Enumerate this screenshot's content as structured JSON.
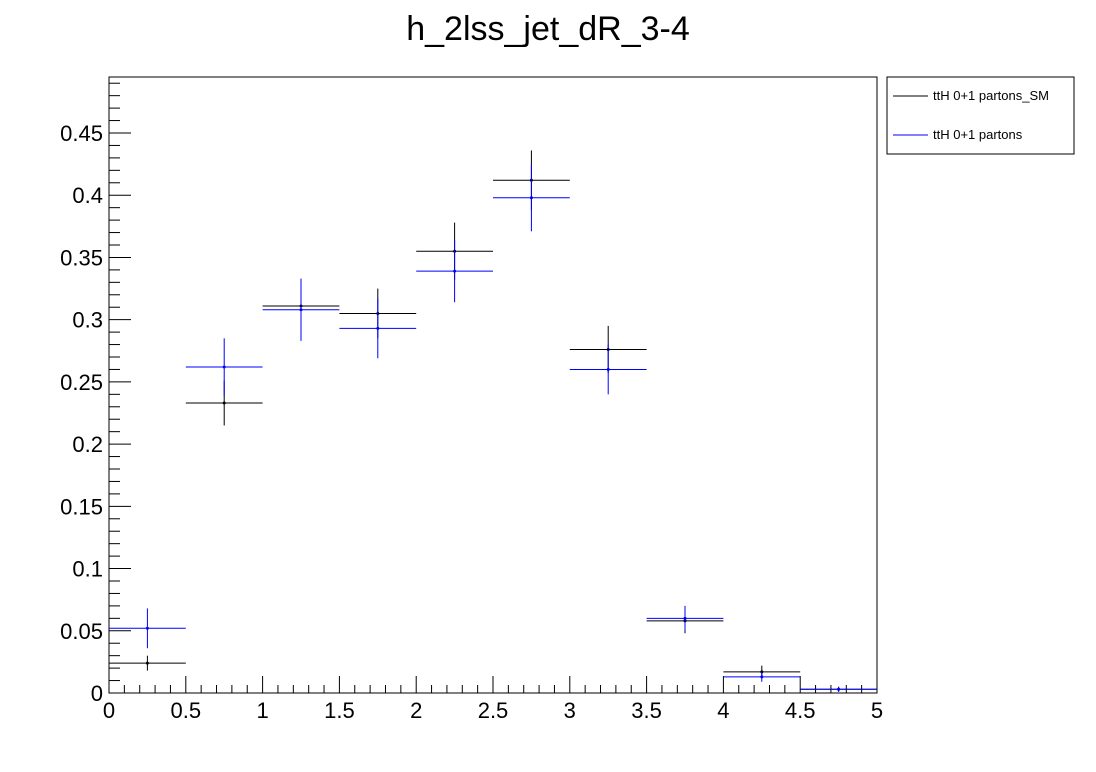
{
  "chart_data": {
    "type": "scatter",
    "title": "h_2lss_jet_dR_3-4",
    "xlabel": "",
    "ylabel": "",
    "xlim": [
      0,
      5
    ],
    "ylim": [
      0,
      0.495
    ],
    "x_ticks": [
      "0",
      "0.5",
      "1",
      "1.5",
      "2",
      "2.5",
      "3",
      "3.5",
      "4",
      "4.5",
      "5"
    ],
    "y_ticks": [
      "0",
      "0.05",
      "0.1",
      "0.15",
      "0.2",
      "0.25",
      "0.3",
      "0.35",
      "0.4",
      "0.45"
    ],
    "bin_edges": [
      0,
      0.5,
      1,
      1.5,
      2,
      2.5,
      3,
      3.5,
      4,
      4.5,
      5
    ],
    "legend_position": "top-right, outside plot",
    "series": [
      {
        "name": "ttH 0+1 partons_SM",
        "color": "#000000",
        "values": [
          0.024,
          0.233,
          0.311,
          0.305,
          0.355,
          0.412,
          0.276,
          0.058,
          0.017,
          0.003
        ],
        "errors": [
          0.006,
          0.018,
          0.02,
          0.02,
          0.023,
          0.024,
          0.019,
          0.01,
          0.005,
          0.002
        ]
      },
      {
        "name": "ttH 0+1 partons",
        "color": "#0000ff",
        "values": [
          0.052,
          0.262,
          0.308,
          0.293,
          0.339,
          0.398,
          0.26,
          0.06,
          0.013,
          0.003
        ],
        "errors": [
          0.016,
          0.023,
          0.025,
          0.024,
          0.025,
          0.027,
          0.02,
          0.01,
          0.004,
          0.002
        ]
      }
    ]
  }
}
